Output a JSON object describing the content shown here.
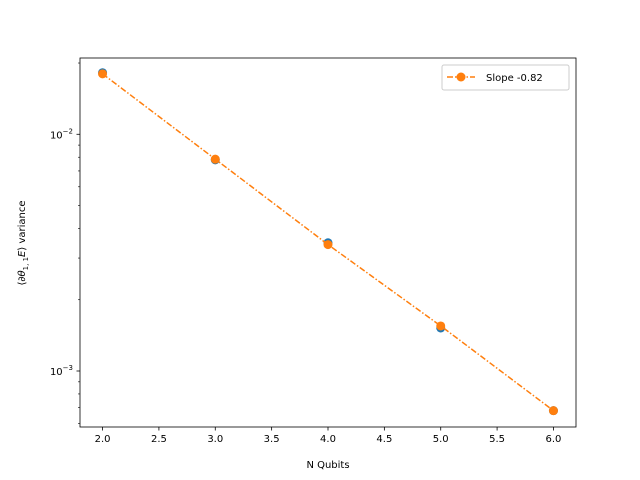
{
  "chart_data": {
    "type": "scatter",
    "xlabel": "N Qubits",
    "ylabel_parts": {
      "open": "⟨∂",
      "theta": "θ",
      "sub": "1, 1",
      "E": "E",
      "close": "⟩ variance"
    },
    "x_scale": "linear",
    "y_scale": "log",
    "xlim": [
      1.8,
      6.2
    ],
    "ylim": [
      0.00058,
      0.021
    ],
    "x_ticks": [
      2.0,
      2.5,
      3.0,
      3.5,
      4.0,
      4.5,
      5.0,
      5.5,
      6.0
    ],
    "x_tick_labels": [
      "2.0",
      "2.5",
      "3.0",
      "3.5",
      "4.0",
      "4.5",
      "5.0",
      "5.5",
      "6.0"
    ],
    "y_major_ticks": [
      0.001,
      0.01
    ],
    "y_major_tick_labels": [
      {
        "base": "10",
        "exp": "−3"
      },
      {
        "base": "10",
        "exp": "−2"
      }
    ],
    "y_minor_ticks": [
      0.0006,
      0.0007,
      0.0008,
      0.0009,
      0.002,
      0.003,
      0.004,
      0.005,
      0.006,
      0.007,
      0.008,
      0.009,
      0.02
    ],
    "grid": false,
    "legend_position": "upper right",
    "series": [
      {
        "style": "markers",
        "color": "#1f77b4",
        "x": [
          2,
          3,
          4,
          5,
          6
        ],
        "y": [
          0.0182,
          0.0078,
          0.00348,
          0.00152,
          0.00068
        ]
      },
      {
        "name": "Slope -0.82",
        "style": "dashdot-line-markers",
        "color": "#ff7f0e",
        "x": [
          2,
          3,
          4,
          5,
          6
        ],
        "y": [
          0.018,
          0.00785,
          0.00342,
          0.00155,
          0.00068
        ]
      }
    ]
  }
}
